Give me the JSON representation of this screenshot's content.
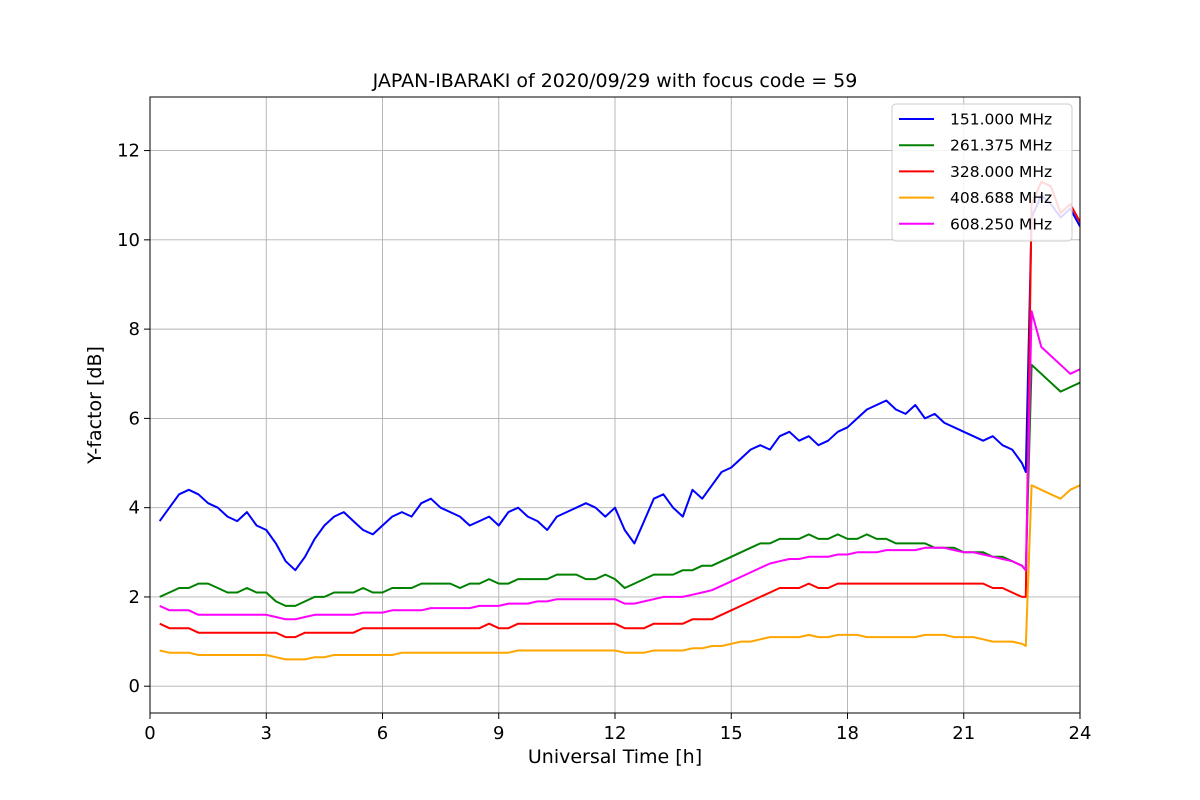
{
  "chart_data": {
    "type": "line",
    "title": "JAPAN-IBARAKI of 2020/09/29 with focus code = 59",
    "xlabel": "Universal Time [h]",
    "ylabel": "Y-factor [dB]",
    "xlim": [
      0,
      24
    ],
    "ylim": [
      -0.6,
      13.2
    ],
    "xticks": [
      0,
      3,
      6,
      9,
      12,
      15,
      18,
      21,
      24
    ],
    "yticks": [
      0,
      2,
      4,
      6,
      8,
      10,
      12
    ],
    "grid": true,
    "legend_position": "top-right",
    "x": [
      0.25,
      0.5,
      0.75,
      1.0,
      1.25,
      1.5,
      1.75,
      2.0,
      2.25,
      2.5,
      2.75,
      3.0,
      3.25,
      3.5,
      3.75,
      4.0,
      4.25,
      4.5,
      4.75,
      5.0,
      5.25,
      5.5,
      5.75,
      6.0,
      6.25,
      6.5,
      6.75,
      7.0,
      7.25,
      7.5,
      7.75,
      8.0,
      8.25,
      8.5,
      8.75,
      9.0,
      9.25,
      9.5,
      9.75,
      10.0,
      10.25,
      10.5,
      10.75,
      11.0,
      11.25,
      11.5,
      11.75,
      12.0,
      12.25,
      12.5,
      12.75,
      13.0,
      13.25,
      13.5,
      13.75,
      14.0,
      14.25,
      14.5,
      14.75,
      15.0,
      15.25,
      15.5,
      15.75,
      16.0,
      16.25,
      16.5,
      16.75,
      17.0,
      17.25,
      17.5,
      17.75,
      18.0,
      18.25,
      18.5,
      18.75,
      19.0,
      19.25,
      19.5,
      19.75,
      20.0,
      20.25,
      20.5,
      20.75,
      21.0,
      21.25,
      21.5,
      21.75,
      22.0,
      22.25,
      22.5,
      22.6,
      22.75,
      23.0,
      23.25,
      23.5,
      23.75,
      24.0
    ],
    "series": [
      {
        "name": "151.000 MHz",
        "color": "#0000ff",
        "values": [
          3.7,
          4.0,
          4.3,
          4.4,
          4.3,
          4.1,
          4.0,
          3.8,
          3.7,
          3.9,
          3.6,
          3.5,
          3.2,
          2.8,
          2.6,
          2.9,
          3.3,
          3.6,
          3.8,
          3.9,
          3.7,
          3.5,
          3.4,
          3.6,
          3.8,
          3.9,
          3.8,
          4.1,
          4.2,
          4.0,
          3.9,
          3.8,
          3.6,
          3.7,
          3.8,
          3.6,
          3.9,
          4.0,
          3.8,
          3.7,
          3.5,
          3.8,
          3.9,
          4.0,
          4.1,
          4.0,
          3.8,
          4.0,
          3.5,
          3.2,
          3.7,
          4.2,
          4.3,
          4.0,
          3.8,
          4.4,
          4.2,
          4.5,
          4.8,
          4.9,
          5.1,
          5.3,
          5.4,
          5.3,
          5.6,
          5.7,
          5.5,
          5.6,
          5.4,
          5.5,
          5.7,
          5.8,
          6.0,
          6.2,
          6.3,
          6.4,
          6.2,
          6.1,
          6.3,
          6.0,
          6.1,
          5.9,
          5.8,
          5.7,
          5.6,
          5.5,
          5.6,
          5.4,
          5.3,
          5.0,
          4.8,
          10.5,
          11.0,
          10.8,
          10.5,
          10.7,
          10.3
        ]
      },
      {
        "name": "261.375 MHz",
        "color": "#008000",
        "values": [
          2.0,
          2.1,
          2.2,
          2.2,
          2.3,
          2.3,
          2.2,
          2.1,
          2.1,
          2.2,
          2.1,
          2.1,
          1.9,
          1.8,
          1.8,
          1.9,
          2.0,
          2.0,
          2.1,
          2.1,
          2.1,
          2.2,
          2.1,
          2.1,
          2.2,
          2.2,
          2.2,
          2.3,
          2.3,
          2.3,
          2.3,
          2.2,
          2.3,
          2.3,
          2.4,
          2.3,
          2.3,
          2.4,
          2.4,
          2.4,
          2.4,
          2.5,
          2.5,
          2.5,
          2.4,
          2.4,
          2.5,
          2.4,
          2.2,
          2.3,
          2.4,
          2.5,
          2.5,
          2.5,
          2.6,
          2.6,
          2.7,
          2.7,
          2.8,
          2.9,
          3.0,
          3.1,
          3.2,
          3.2,
          3.3,
          3.3,
          3.3,
          3.4,
          3.3,
          3.3,
          3.4,
          3.3,
          3.3,
          3.4,
          3.3,
          3.3,
          3.2,
          3.2,
          3.2,
          3.2,
          3.1,
          3.1,
          3.1,
          3.0,
          3.0,
          3.0,
          2.9,
          2.9,
          2.8,
          2.7,
          2.6,
          7.2,
          7.0,
          6.8,
          6.6,
          6.7,
          6.8
        ]
      },
      {
        "name": "328.000 MHz",
        "color": "#ff0000",
        "values": [
          1.4,
          1.3,
          1.3,
          1.3,
          1.2,
          1.2,
          1.2,
          1.2,
          1.2,
          1.2,
          1.2,
          1.2,
          1.2,
          1.1,
          1.1,
          1.2,
          1.2,
          1.2,
          1.2,
          1.2,
          1.2,
          1.3,
          1.3,
          1.3,
          1.3,
          1.3,
          1.3,
          1.3,
          1.3,
          1.3,
          1.3,
          1.3,
          1.3,
          1.3,
          1.4,
          1.3,
          1.3,
          1.4,
          1.4,
          1.4,
          1.4,
          1.4,
          1.4,
          1.4,
          1.4,
          1.4,
          1.4,
          1.4,
          1.3,
          1.3,
          1.3,
          1.4,
          1.4,
          1.4,
          1.4,
          1.5,
          1.5,
          1.5,
          1.6,
          1.7,
          1.8,
          1.9,
          2.0,
          2.1,
          2.2,
          2.2,
          2.2,
          2.3,
          2.2,
          2.2,
          2.3,
          2.3,
          2.3,
          2.3,
          2.3,
          2.3,
          2.3,
          2.3,
          2.3,
          2.3,
          2.3,
          2.3,
          2.3,
          2.3,
          2.3,
          2.3,
          2.2,
          2.2,
          2.1,
          2.0,
          2.0,
          10.8,
          11.3,
          11.2,
          10.6,
          10.8,
          10.4
        ]
      },
      {
        "name": "408.688 MHz",
        "color": "#ffa500",
        "values": [
          0.8,
          0.75,
          0.75,
          0.75,
          0.7,
          0.7,
          0.7,
          0.7,
          0.7,
          0.7,
          0.7,
          0.7,
          0.65,
          0.6,
          0.6,
          0.6,
          0.65,
          0.65,
          0.7,
          0.7,
          0.7,
          0.7,
          0.7,
          0.7,
          0.7,
          0.75,
          0.75,
          0.75,
          0.75,
          0.75,
          0.75,
          0.75,
          0.75,
          0.75,
          0.75,
          0.75,
          0.75,
          0.8,
          0.8,
          0.8,
          0.8,
          0.8,
          0.8,
          0.8,
          0.8,
          0.8,
          0.8,
          0.8,
          0.75,
          0.75,
          0.75,
          0.8,
          0.8,
          0.8,
          0.8,
          0.85,
          0.85,
          0.9,
          0.9,
          0.95,
          1.0,
          1.0,
          1.05,
          1.1,
          1.1,
          1.1,
          1.1,
          1.15,
          1.1,
          1.1,
          1.15,
          1.15,
          1.15,
          1.1,
          1.1,
          1.1,
          1.1,
          1.1,
          1.1,
          1.15,
          1.15,
          1.15,
          1.1,
          1.1,
          1.1,
          1.05,
          1.0,
          1.0,
          1.0,
          0.95,
          0.9,
          4.5,
          4.4,
          4.3,
          4.2,
          4.4,
          4.5
        ]
      },
      {
        "name": "608.250 MHz",
        "color": "#ff00ff",
        "values": [
          1.8,
          1.7,
          1.7,
          1.7,
          1.6,
          1.6,
          1.6,
          1.6,
          1.6,
          1.6,
          1.6,
          1.6,
          1.55,
          1.5,
          1.5,
          1.55,
          1.6,
          1.6,
          1.6,
          1.6,
          1.6,
          1.65,
          1.65,
          1.65,
          1.7,
          1.7,
          1.7,
          1.7,
          1.75,
          1.75,
          1.75,
          1.75,
          1.75,
          1.8,
          1.8,
          1.8,
          1.85,
          1.85,
          1.85,
          1.9,
          1.9,
          1.95,
          1.95,
          1.95,
          1.95,
          1.95,
          1.95,
          1.95,
          1.85,
          1.85,
          1.9,
          1.95,
          2.0,
          2.0,
          2.0,
          2.05,
          2.1,
          2.15,
          2.25,
          2.35,
          2.45,
          2.55,
          2.65,
          2.75,
          2.8,
          2.85,
          2.85,
          2.9,
          2.9,
          2.9,
          2.95,
          2.95,
          3.0,
          3.0,
          3.0,
          3.05,
          3.05,
          3.05,
          3.05,
          3.1,
          3.1,
          3.1,
          3.05,
          3.0,
          3.0,
          2.95,
          2.9,
          2.85,
          2.8,
          2.7,
          2.6,
          8.4,
          7.6,
          7.4,
          7.2,
          7.0,
          7.1
        ]
      }
    ]
  }
}
